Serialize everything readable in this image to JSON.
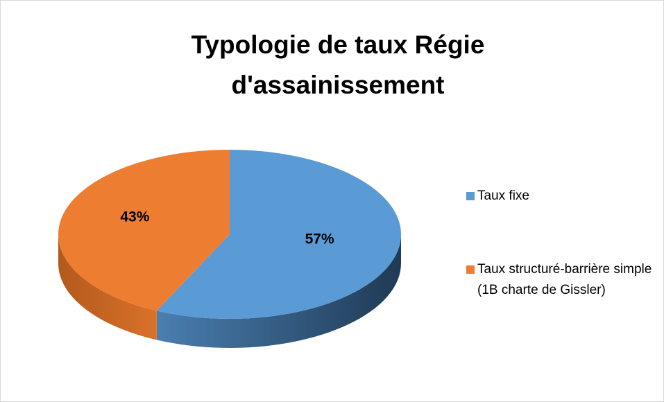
{
  "chart_data": {
    "type": "pie",
    "title": "Typologie de taux Régie d'assainissement",
    "categories": [
      "Taux fixe",
      "Taux structuré-barrière simple (1B charte de Gissler)"
    ],
    "values": [
      57,
      43
    ],
    "value_labels": [
      "57%",
      "43%"
    ],
    "colors": [
      "#5b9bd5",
      "#ed7d31"
    ],
    "legend": "right"
  }
}
